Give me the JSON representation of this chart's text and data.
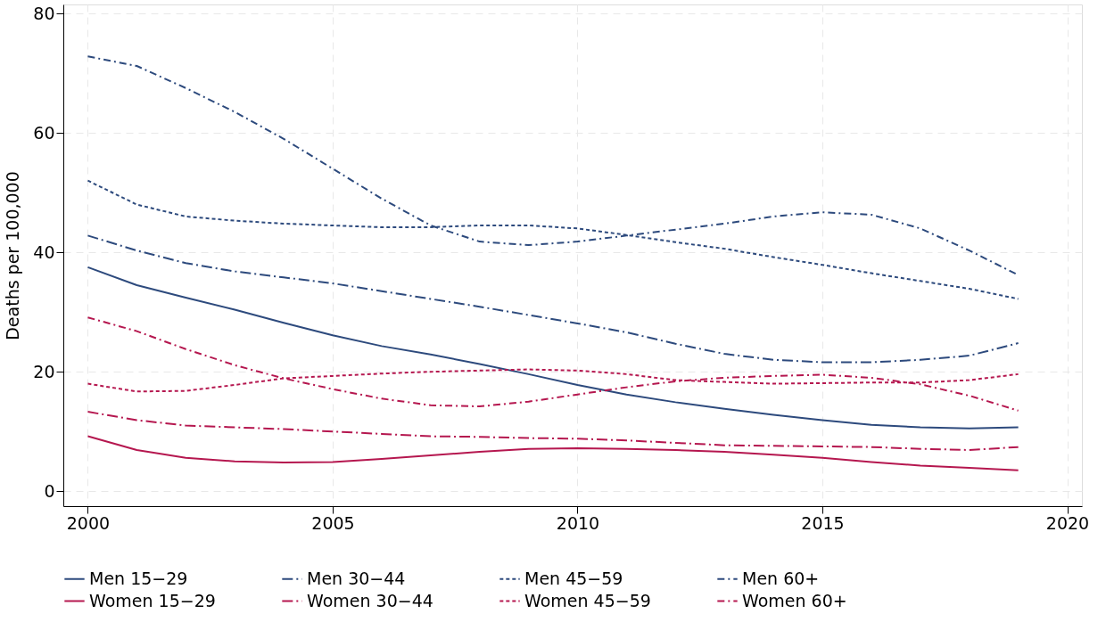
{
  "chart_data": {
    "type": "line",
    "ylabel": "Deaths per 100,000",
    "x": [
      2000,
      2001,
      2002,
      2003,
      2004,
      2005,
      2006,
      2007,
      2008,
      2009,
      2010,
      2011,
      2012,
      2013,
      2014,
      2015,
      2016,
      2017,
      2018,
      2019
    ],
    "xlim": [
      1999.5,
      2020.3
    ],
    "xticks": [
      2000,
      2005,
      2010,
      2015,
      2020
    ],
    "ylim": [
      -2.5,
      81.5
    ],
    "yticks": [
      0,
      20,
      40,
      60,
      80
    ],
    "grid": true,
    "legend": "bottom",
    "marker": "none",
    "series": [
      {
        "name": "Men 15−29",
        "color": "#2d4a7d",
        "line_style": "solid",
        "values": [
          37.5,
          34.5,
          32.4,
          30.4,
          28.2,
          26.1,
          24.3,
          22.9,
          21.3,
          19.6,
          17.8,
          16.2,
          14.9,
          13.8,
          12.8,
          11.9,
          11.1,
          10.7,
          10.5,
          10.7
        ]
      },
      {
        "name": "Men 30−44",
        "color": "#2d4a7d",
        "line_style": "dashed",
        "values": [
          42.8,
          40.3,
          38.2,
          36.8,
          35.8,
          34.8,
          33.5,
          32.2,
          30.9,
          29.5,
          28.1,
          26.6,
          24.7,
          23.0,
          22.0,
          21.6,
          21.6,
          22.0,
          22.7,
          24.8
        ]
      },
      {
        "name": "Men 45−59",
        "color": "#2d4a7d",
        "line_style": "dotted",
        "values": [
          52.0,
          48.0,
          46.0,
          45.3,
          44.8,
          44.5,
          44.2,
          44.2,
          44.5,
          44.5,
          44.0,
          42.9,
          41.7,
          40.6,
          39.2,
          37.9,
          36.5,
          35.2,
          33.9,
          32.2
        ]
      },
      {
        "name": "Men 60+",
        "color": "#2d4a7d",
        "line_style": "dashdot",
        "values": [
          72.8,
          71.2,
          67.5,
          63.5,
          59.0,
          54.0,
          49.0,
          44.5,
          41.8,
          41.2,
          41.8,
          42.8,
          43.8,
          44.8,
          46.0,
          46.7,
          46.3,
          44.0,
          40.3,
          36.2
        ]
      },
      {
        "name": "Women 15−29",
        "color": "#b5174f",
        "line_style": "solid",
        "values": [
          9.2,
          6.9,
          5.6,
          5.0,
          4.8,
          4.9,
          5.4,
          6.0,
          6.6,
          7.1,
          7.2,
          7.1,
          6.9,
          6.6,
          6.1,
          5.6,
          4.9,
          4.3,
          3.9,
          3.5
        ]
      },
      {
        "name": "Women 30−44",
        "color": "#b5174f",
        "line_style": "dashed",
        "values": [
          13.3,
          11.9,
          11.0,
          10.7,
          10.4,
          10.0,
          9.6,
          9.2,
          9.1,
          8.9,
          8.8,
          8.5,
          8.1,
          7.7,
          7.6,
          7.5,
          7.4,
          7.1,
          6.9,
          7.4
        ]
      },
      {
        "name": "Women 45−59",
        "color": "#b5174f",
        "line_style": "dotted",
        "values": [
          18.0,
          16.7,
          16.8,
          17.8,
          18.9,
          19.3,
          19.7,
          20.0,
          20.2,
          20.4,
          20.2,
          19.6,
          18.6,
          18.3,
          18.0,
          18.1,
          18.2,
          18.2,
          18.6,
          19.6
        ]
      },
      {
        "name": "Women 60+",
        "color": "#b5174f",
        "line_style": "dashdot",
        "values": [
          29.1,
          26.8,
          23.8,
          21.1,
          18.9,
          17.1,
          15.5,
          14.4,
          14.2,
          15.0,
          16.2,
          17.4,
          18.4,
          19.0,
          19.3,
          19.5,
          19.0,
          17.9,
          16.0,
          13.5
        ]
      }
    ]
  }
}
